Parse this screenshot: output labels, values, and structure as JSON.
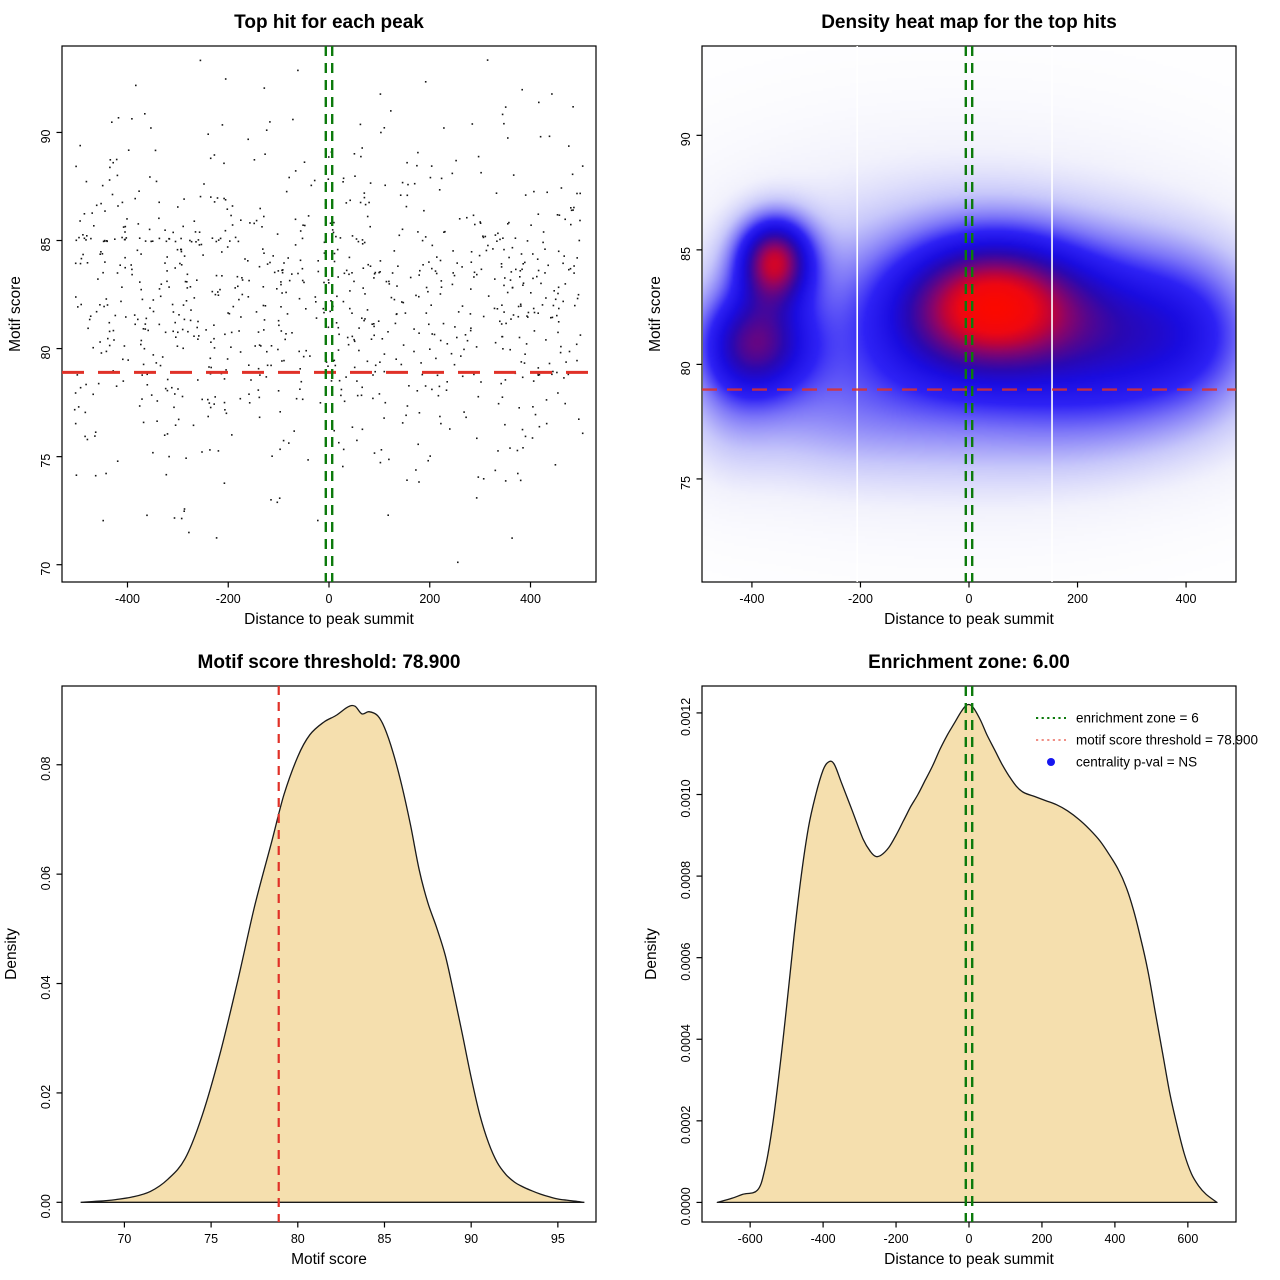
{
  "figure": {
    "background": "#ffffff"
  },
  "chart_data": [
    {
      "id": "scatter",
      "type": "scatter",
      "title": "Top hit for each peak",
      "xlabel": "Distance to peak summit",
      "ylabel": "Motif score",
      "xlim": [
        -530,
        530
      ],
      "ylim": [
        69.2,
        94.0
      ],
      "xticks": {
        "values": [
          -400,
          -200,
          0,
          200,
          400
        ],
        "labels": [
          "-400",
          "-200",
          "0",
          "200",
          "400"
        ]
      },
      "yticks": {
        "values": [
          70,
          75,
          80,
          85,
          90
        ],
        "labels": [
          "70",
          "75",
          "80",
          "85",
          "90"
        ]
      },
      "motif_score_threshold": 78.9,
      "enrichment_zone": [
        -3,
        3
      ],
      "colors": {
        "points": "#161616",
        "threshold_line": "#e03128",
        "zone_line": "#0c7a0c"
      },
      "points_gen": {
        "seed": 77,
        "n": 900,
        "x_min": -505,
        "x_max": 505,
        "y_mean": 82.1,
        "y_sd": 4.3,
        "y_min": 69.9,
        "y_max": 93.6,
        "row_y": 85.05,
        "row_n": 30,
        "row_x_min": -505,
        "row_x_max": -110
      }
    },
    {
      "id": "heatmap",
      "type": "heatmap",
      "title": "Density heat map for the top hits",
      "xlabel": "Distance to peak summit",
      "ylabel": "Motif score",
      "xlim": [
        -492,
        492
      ],
      "ylim": [
        70.5,
        93.9
      ],
      "xticks": {
        "values": [
          -400,
          -200,
          0,
          200,
          400
        ],
        "labels": [
          "-400",
          "-200",
          "0",
          "200",
          "400"
        ]
      },
      "yticks": {
        "values": [
          75,
          80,
          85,
          90
        ],
        "labels": [
          "75",
          "80",
          "85",
          "90"
        ]
      },
      "motif_score_threshold": 78.9,
      "enrichment_zone": [
        -3,
        3
      ],
      "white_lines_x": [
        -206,
        153
      ],
      "colors": {
        "threshold_line": "#e03128",
        "zone_line": "#0c7a0c",
        "white_line": "#ffffff"
      },
      "kernels": [
        {
          "x": -20,
          "y": 81.9,
          "sx": 340,
          "sy": 4.8,
          "w": 0.4
        },
        {
          "x": 25,
          "y": 82.7,
          "sx": 100,
          "sy": 2.05,
          "w": 1.0
        },
        {
          "x": 120,
          "y": 82.8,
          "sx": 95,
          "sy": 2.1,
          "w": 0.38
        },
        {
          "x": -90,
          "y": 82.0,
          "sx": 120,
          "sy": 2.4,
          "w": 0.42
        },
        {
          "x": -360,
          "y": 84.6,
          "sx": 48,
          "sy": 1.3,
          "w": 1.45
        },
        {
          "x": -390,
          "y": 81.0,
          "sx": 70,
          "sy": 1.6,
          "w": 1.0
        },
        {
          "x": 290,
          "y": 81.5,
          "sx": 150,
          "sy": 2.6,
          "w": 0.8
        },
        {
          "x": 430,
          "y": 81.2,
          "sx": 80,
          "sy": 2.4,
          "w": 0.2
        },
        {
          "x": -290,
          "y": 77.9,
          "sx": 150,
          "sy": 2.1,
          "w": 0.2
        },
        {
          "x": 120,
          "y": 77.6,
          "sx": 230,
          "sy": 2.1,
          "w": 0.2
        },
        {
          "x": -445,
          "y": 79.8,
          "sx": 60,
          "sy": 2.8,
          "w": 0.22
        }
      ],
      "colormap": [
        [
          0.0,
          "#ffffff"
        ],
        [
          0.06,
          "#f2f2fc"
        ],
        [
          0.15,
          "#c8c8fa"
        ],
        [
          0.27,
          "#7d76f8"
        ],
        [
          0.38,
          "#2e22f5"
        ],
        [
          0.5,
          "#1a0ce0"
        ],
        [
          0.6,
          "#2a08b2"
        ],
        [
          0.68,
          "#56068e"
        ],
        [
          0.76,
          "#8c0468"
        ],
        [
          0.83,
          "#c00338"
        ],
        [
          0.91,
          "#ee0712"
        ],
        [
          1.0,
          "#fb0800"
        ]
      ]
    },
    {
      "id": "score_density",
      "type": "area",
      "title": "Motif score threshold: 78.900",
      "xlabel": "Motif score",
      "ylabel": "Density",
      "xlim": [
        66.4,
        97.2
      ],
      "ylim": [
        -0.0036,
        0.0944
      ],
      "xticks": {
        "values": [
          70,
          75,
          80,
          85,
          90,
          95
        ],
        "labels": [
          "70",
          "75",
          "80",
          "85",
          "90",
          "95"
        ]
      },
      "yticks": {
        "values": [
          0,
          0.02,
          0.04,
          0.06,
          0.08
        ],
        "labels": [
          "0.00",
          "0.02",
          "0.04",
          "0.06",
          "0.08"
        ]
      },
      "threshold_x": 78.9,
      "colors": {
        "fill": "#f5dfae",
        "stroke": "#1a1a1a",
        "threshold_line": "#e03128"
      },
      "curve": [
        [
          67.5,
          0
        ],
        [
          68.5,
          0.0002
        ],
        [
          69.5,
          0.0005
        ],
        [
          70.5,
          0.001
        ],
        [
          71.5,
          0.002
        ],
        [
          72.5,
          0.0042
        ],
        [
          73.5,
          0.008
        ],
        [
          74.5,
          0.016
        ],
        [
          75.5,
          0.027
        ],
        [
          76.5,
          0.04
        ],
        [
          77.5,
          0.054
        ],
        [
          78.5,
          0.066
        ],
        [
          79.2,
          0.0745
        ],
        [
          80,
          0.0815
        ],
        [
          80.7,
          0.0855
        ],
        [
          81.5,
          0.0878
        ],
        [
          82.2,
          0.089
        ],
        [
          82.9,
          0.0906
        ],
        [
          83.3,
          0.0907
        ],
        [
          83.7,
          0.0893
        ],
        [
          84.1,
          0.0897
        ],
        [
          84.6,
          0.089
        ],
        [
          85,
          0.0868
        ],
        [
          85.5,
          0.0822
        ],
        [
          86,
          0.0762
        ],
        [
          86.5,
          0.069
        ],
        [
          87,
          0.0608
        ],
        [
          87.5,
          0.0548
        ],
        [
          88,
          0.0503
        ],
        [
          88.5,
          0.0452
        ],
        [
          89,
          0.0382
        ],
        [
          89.5,
          0.0306
        ],
        [
          90,
          0.0228
        ],
        [
          90.5,
          0.016
        ],
        [
          91,
          0.0109
        ],
        [
          91.5,
          0.0073
        ],
        [
          92,
          0.0051
        ],
        [
          92.5,
          0.0037
        ],
        [
          93,
          0.0028
        ],
        [
          93.5,
          0.0021
        ],
        [
          94,
          0.0015
        ],
        [
          94.5,
          0.001
        ],
        [
          95,
          0.0006
        ],
        [
          95.5,
          0.0004
        ],
        [
          96,
          0.0002
        ],
        [
          96.5,
          0
        ]
      ]
    },
    {
      "id": "summit_density",
      "type": "area",
      "title": "Enrichment zone: 6.00",
      "xlabel": "Distance to peak summit",
      "ylabel": "Density",
      "xlim": [
        -732,
        732
      ],
      "ylim": [
        -4.8e-05,
        0.001266
      ],
      "xticks": {
        "values": [
          -600,
          -400,
          -200,
          0,
          200,
          400,
          600
        ],
        "labels": [
          "-600",
          "-400",
          "-200",
          "0",
          "200",
          "400",
          "600"
        ]
      },
      "yticks": {
        "values": [
          0,
          0.0002,
          0.0004,
          0.0006,
          0.0008,
          0.001,
          0.0012
        ],
        "labels": [
          "0.0000",
          "0.0002",
          "0.0004",
          "0.0006",
          "0.0008",
          "0.0010",
          "0.0012"
        ]
      },
      "enrichment_zone": [
        -3,
        3
      ],
      "colors": {
        "fill": "#f5dfae",
        "stroke": "#1a1a1a",
        "zone_line": "#0c7a0c"
      },
      "legend": {
        "items": [
          {
            "label": "enrichment zone = 6",
            "type": "dotted-line",
            "color": "#0c7a0c"
          },
          {
            "label": "motif score threshold = 78.900",
            "type": "dotted-line",
            "color": "#f08f86"
          },
          {
            "label": "centrality p-val = NS",
            "type": "dot",
            "color": "#1616f0"
          }
        ]
      },
      "curve": [
        [
          -690,
          0
        ],
        [
          -650,
          1e-05
        ],
        [
          -620,
          2e-05
        ],
        [
          -580,
          3e-05
        ],
        [
          -560,
          8e-05
        ],
        [
          -540,
          0.00018
        ],
        [
          -520,
          0.00032
        ],
        [
          -500,
          0.00048
        ],
        [
          -480,
          0.00065
        ],
        [
          -460,
          0.0008
        ],
        [
          -440,
          0.00092
        ],
        [
          -420,
          0.001
        ],
        [
          -400,
          0.00106
        ],
        [
          -385,
          0.00108
        ],
        [
          -370,
          0.001075
        ],
        [
          -350,
          0.00103
        ],
        [
          -320,
          0.00096
        ],
        [
          -290,
          0.00089
        ],
        [
          -270,
          0.00086
        ],
        [
          -255,
          0.000848
        ],
        [
          -240,
          0.000852
        ],
        [
          -220,
          0.00087
        ],
        [
          -200,
          0.0009
        ],
        [
          -180,
          0.000935
        ],
        [
          -160,
          0.00097
        ],
        [
          -140,
          0.001
        ],
        [
          -120,
          0.001035
        ],
        [
          -100,
          0.00107
        ],
        [
          -80,
          0.00111
        ],
        [
          -60,
          0.001145
        ],
        [
          -40,
          0.001175
        ],
        [
          -20,
          0.001205
        ],
        [
          -5,
          0.00122
        ],
        [
          10,
          0.001215
        ],
        [
          30,
          0.001185
        ],
        [
          50,
          0.001145
        ],
        [
          70,
          0.00111
        ],
        [
          90,
          0.001075
        ],
        [
          110,
          0.001045
        ],
        [
          130,
          0.00102
        ],
        [
          150,
          0.001005
        ],
        [
          180,
          0.000995
        ],
        [
          210,
          0.000985
        ],
        [
          240,
          0.000975
        ],
        [
          270,
          0.00096
        ],
        [
          300,
          0.00094
        ],
        [
          330,
          0.000915
        ],
        [
          360,
          0.000885
        ],
        [
          390,
          0.000845
        ],
        [
          410,
          0.000815
        ],
        [
          430,
          0.000775
        ],
        [
          450,
          0.00072
        ],
        [
          470,
          0.00065
        ],
        [
          490,
          0.00057
        ],
        [
          510,
          0.00047
        ],
        [
          530,
          0.00037
        ],
        [
          550,
          0.00027
        ],
        [
          570,
          0.00019
        ],
        [
          590,
          0.00012
        ],
        [
          610,
          7e-05
        ],
        [
          630,
          4e-05
        ],
        [
          650,
          2e-05
        ],
        [
          680,
          0
        ]
      ]
    }
  ]
}
